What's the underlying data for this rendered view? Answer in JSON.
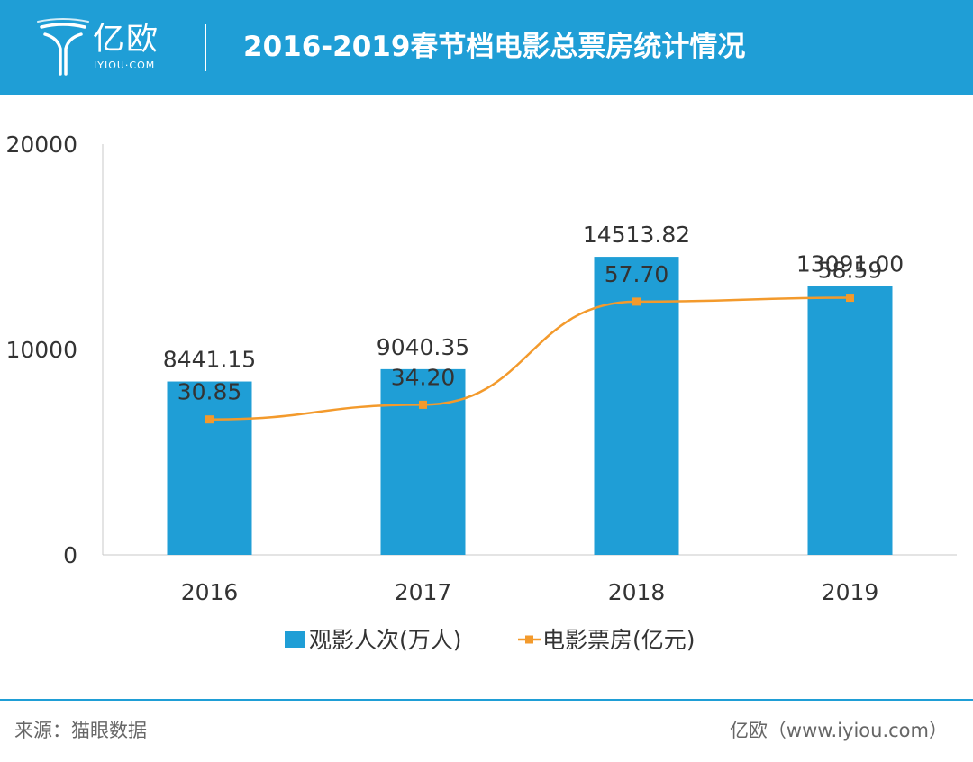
{
  "header": {
    "logo_text": "亿欧",
    "logo_sub": "IYIOU·COM",
    "title": "2016-2019春节档电影总票房统计情况"
  },
  "chart_data": {
    "type": "bar",
    "title": "2016-2019春节档电影总票房统计情况",
    "categories": [
      "2016",
      "2017",
      "2018",
      "2019"
    ],
    "ylim": [
      0,
      20000
    ],
    "yticks": [
      "0",
      "10000",
      "20000"
    ],
    "series": [
      {
        "name": "观影人次(万人)",
        "type": "bar",
        "axis": "left",
        "values": [
          8441.15,
          9040.35,
          14513.82,
          13091.0
        ],
        "labels": [
          "8441.15",
          "9040.35",
          "14513.82",
          "13091.00"
        ],
        "color": "#1f9ed6"
      },
      {
        "name": "电影票房(亿元)",
        "type": "line",
        "axis": "right",
        "ylim": [
          0,
          93.6
        ],
        "values": [
          30.85,
          34.2,
          57.7,
          58.59
        ],
        "labels": [
          "30.85",
          "34.20",
          "57.70",
          "58.59"
        ],
        "color": "#f39a2c"
      }
    ],
    "legend_position": "bottom",
    "grid": false
  },
  "footer": {
    "source": "来源：猫眼数据",
    "credit": "亿欧（www.iyiou.com）"
  }
}
